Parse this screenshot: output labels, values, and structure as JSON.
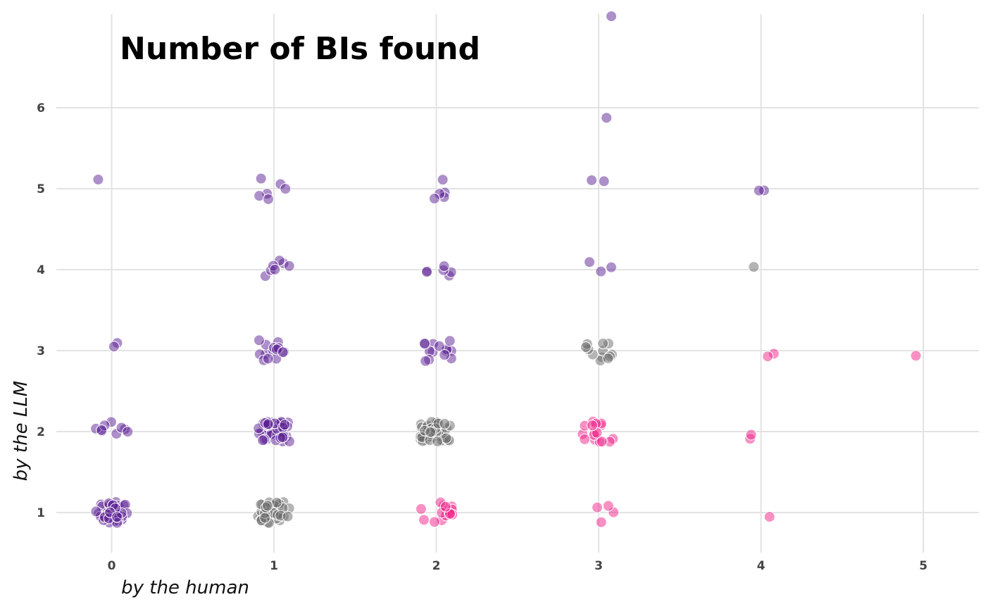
{
  "chart_data": {
    "type": "scatter",
    "title": "Number of BIs found",
    "xlabel": "by the human",
    "ylabel": "by the LLM",
    "xlim": [
      -0.35,
      5.35
    ],
    "ylim": [
      0.6,
      7.0
    ],
    "xticks": [
      0,
      1,
      2,
      3,
      4,
      5
    ],
    "yticks": [
      1,
      2,
      3,
      4,
      5,
      6
    ],
    "grid": true,
    "point_opacity": 0.5,
    "jitter": true,
    "colors": {
      "llm_higher": "#5b1f93",
      "equal": "#6a6a6a",
      "llm_lower": "#f0248a"
    },
    "groups": [
      {
        "x": 0,
        "y": 1,
        "count": 40,
        "category": "llm_higher"
      },
      {
        "x": 0,
        "y": 2,
        "count": 9,
        "category": "llm_higher"
      },
      {
        "x": 0,
        "y": 3,
        "count": 2,
        "category": "llm_higher"
      },
      {
        "x": 0,
        "y": 5,
        "count": 1,
        "category": "llm_higher"
      },
      {
        "x": 1,
        "y": 1,
        "count": 40,
        "category": "equal"
      },
      {
        "x": 1,
        "y": 2,
        "count": 40,
        "category": "llm_higher"
      },
      {
        "x": 1,
        "y": 3,
        "count": 14,
        "category": "llm_higher"
      },
      {
        "x": 1,
        "y": 4,
        "count": 7,
        "category": "llm_higher"
      },
      {
        "x": 1,
        "y": 5,
        "count": 6,
        "category": "llm_higher"
      },
      {
        "x": 2,
        "y": 1,
        "count": 15,
        "category": "llm_lower"
      },
      {
        "x": 2,
        "y": 2,
        "count": 40,
        "category": "equal"
      },
      {
        "x": 2,
        "y": 3,
        "count": 14,
        "category": "llm_higher"
      },
      {
        "x": 2,
        "y": 4,
        "count": 6,
        "category": "llm_higher"
      },
      {
        "x": 2,
        "y": 5,
        "count": 5,
        "category": "llm_higher"
      },
      {
        "x": 3,
        "y": 1,
        "count": 4,
        "category": "llm_lower"
      },
      {
        "x": 3,
        "y": 2,
        "count": 16,
        "category": "llm_lower"
      },
      {
        "x": 3,
        "y": 3,
        "count": 12,
        "category": "equal"
      },
      {
        "x": 3,
        "y": 4,
        "count": 3,
        "category": "llm_higher"
      },
      {
        "x": 3,
        "y": 5,
        "count": 2,
        "category": "llm_higher"
      },
      {
        "x": 3,
        "y": 6,
        "count": 1,
        "category": "llm_higher"
      },
      {
        "x": 3,
        "y": 7,
        "count": 1,
        "category": "llm_higher"
      },
      {
        "x": 4,
        "y": 1,
        "count": 1,
        "category": "llm_lower"
      },
      {
        "x": 4,
        "y": 2,
        "count": 2,
        "category": "llm_lower"
      },
      {
        "x": 4,
        "y": 3,
        "count": 2,
        "category": "llm_lower"
      },
      {
        "x": 4,
        "y": 4,
        "count": 1,
        "category": "equal"
      },
      {
        "x": 4,
        "y": 5,
        "count": 2,
        "category": "llm_higher"
      },
      {
        "x": 5,
        "y": 3,
        "count": 1,
        "category": "llm_lower"
      }
    ]
  }
}
